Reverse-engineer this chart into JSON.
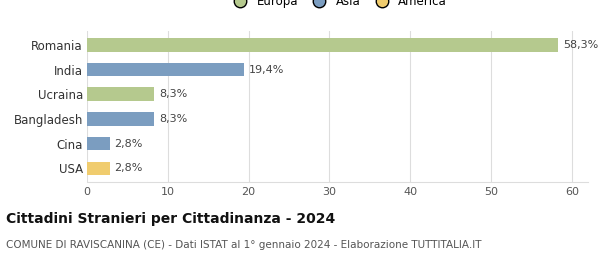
{
  "categories": [
    "Romania",
    "India",
    "Ucraina",
    "Bangladesh",
    "Cina",
    "USA"
  ],
  "values": [
    58.3,
    19.4,
    8.3,
    8.3,
    2.8,
    2.8
  ],
  "labels": [
    "58,3%",
    "19,4%",
    "8,3%",
    "8,3%",
    "2,8%",
    "2,8%"
  ],
  "colors": [
    "#b5c98e",
    "#7b9dc0",
    "#b5c98e",
    "#7b9dc0",
    "#7b9dc0",
    "#f0cc6e"
  ],
  "legend_labels": [
    "Europa",
    "Asia",
    "America"
  ],
  "legend_colors": [
    "#b5c98e",
    "#7b9dc0",
    "#f0cc6e"
  ],
  "xlim": [
    0,
    62
  ],
  "xticks": [
    0,
    10,
    20,
    30,
    40,
    50,
    60
  ],
  "title": "Cittadini Stranieri per Cittadinanza - 2024",
  "subtitle": "COMUNE DI RAVISCANINA (CE) - Dati ISTAT al 1° gennaio 2024 - Elaborazione TUTTITALIA.IT",
  "background_color": "#ffffff",
  "grid_color": "#dddddd",
  "bar_height": 0.55,
  "label_fontsize": 8.0,
  "ytick_fontsize": 8.5,
  "xtick_fontsize": 8.0,
  "title_fontsize": 10,
  "subtitle_fontsize": 7.5,
  "legend_fontsize": 8.5
}
